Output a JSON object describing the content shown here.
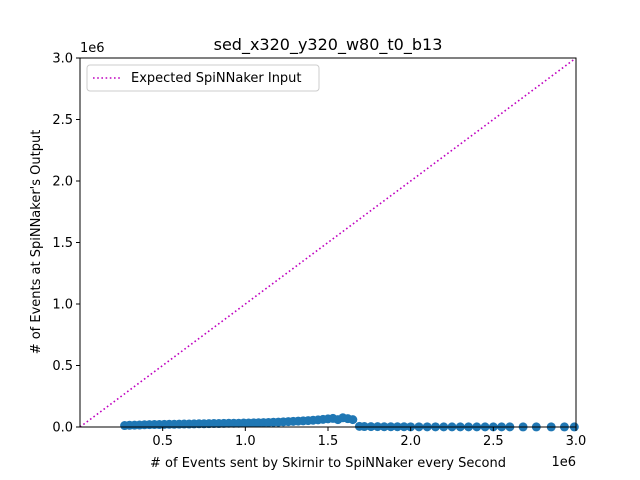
{
  "chart_data": {
    "type": "scatter",
    "title": "sed_x320_y320_w80_t0_b13",
    "xlabel": "# of Events sent by Skirnir to SpiNNaker every Second",
    "ylabel": "# of Events at SpiNNaker's Output",
    "x_offset_label": "1e6",
    "y_offset_label": "1e6",
    "xlim": [
      0,
      3000000
    ],
    "ylim": [
      0,
      3000000
    ],
    "x_ticks": [
      {
        "value": 500000,
        "label": "0.5"
      },
      {
        "value": 1000000,
        "label": "1.0"
      },
      {
        "value": 1500000,
        "label": "1.5"
      },
      {
        "value": 2000000,
        "label": "2.0"
      },
      {
        "value": 2500000,
        "label": "2.5"
      },
      {
        "value": 3000000,
        "label": "3.0"
      }
    ],
    "y_ticks": [
      {
        "value": 0,
        "label": "0.0"
      },
      {
        "value": 500000,
        "label": "0.5"
      },
      {
        "value": 1000000,
        "label": "1.0"
      },
      {
        "value": 1500000,
        "label": "1.5"
      },
      {
        "value": 2000000,
        "label": "2.0"
      },
      {
        "value": 2500000,
        "label": "2.5"
      },
      {
        "value": 3000000,
        "label": "3.0"
      }
    ],
    "grid": false,
    "legend": {
      "position": "top-left",
      "entries": [
        {
          "label": "Expected SpiNNaker Input",
          "style": "dotted",
          "color": "#bf00bf"
        }
      ]
    },
    "reference_line": {
      "name": "Expected SpiNNaker Input",
      "x": [
        0,
        3000000
      ],
      "y": [
        0,
        3000000
      ],
      "color": "#bf00bf",
      "style": "dotted"
    },
    "series": [
      {
        "color": "#1f77b4",
        "x": [
          270000,
          300000,
          330000,
          360000,
          390000,
          420000,
          450000,
          480000,
          510000,
          540000,
          570000,
          600000,
          630000,
          660000,
          690000,
          720000,
          750000,
          780000,
          810000,
          840000,
          870000,
          900000,
          930000,
          960000,
          990000,
          1020000,
          1050000,
          1080000,
          1110000,
          1140000,
          1170000,
          1200000,
          1230000,
          1260000,
          1290000,
          1320000,
          1350000,
          1380000,
          1410000,
          1440000,
          1470000,
          1500000,
          1530000,
          1560000,
          1590000,
          1620000,
          1650000,
          1690000,
          1720000,
          1760000,
          1800000,
          1840000,
          1880000,
          1920000,
          1960000,
          2000000,
          2050000,
          2100000,
          2150000,
          2200000,
          2250000,
          2300000,
          2350000,
          2400000,
          2450000,
          2500000,
          2550000,
          2600000,
          2680000,
          2760000,
          2850000,
          2930000,
          2990000
        ],
        "values": [
          12000,
          14000,
          15000,
          16000,
          18000,
          19000,
          20000,
          20000,
          21000,
          22000,
          22000,
          23000,
          24000,
          24000,
          25000,
          26000,
          26000,
          27000,
          28000,
          28000,
          29000,
          30000,
          30000,
          31000,
          32000,
          33000,
          34000,
          35000,
          36000,
          37000,
          39000,
          40000,
          42000,
          44000,
          46000,
          48000,
          50000,
          52000,
          55000,
          58000,
          62000,
          66000,
          70000,
          60000,
          75000,
          68000,
          60000,
          5000,
          4000,
          3000,
          3000,
          2000,
          2000,
          2000,
          2000,
          1500,
          1500,
          1500,
          1500,
          1000,
          1000,
          1000,
          1000,
          1000,
          1000,
          1000,
          1000,
          1000,
          800,
          800,
          800,
          800,
          800
        ]
      }
    ]
  }
}
